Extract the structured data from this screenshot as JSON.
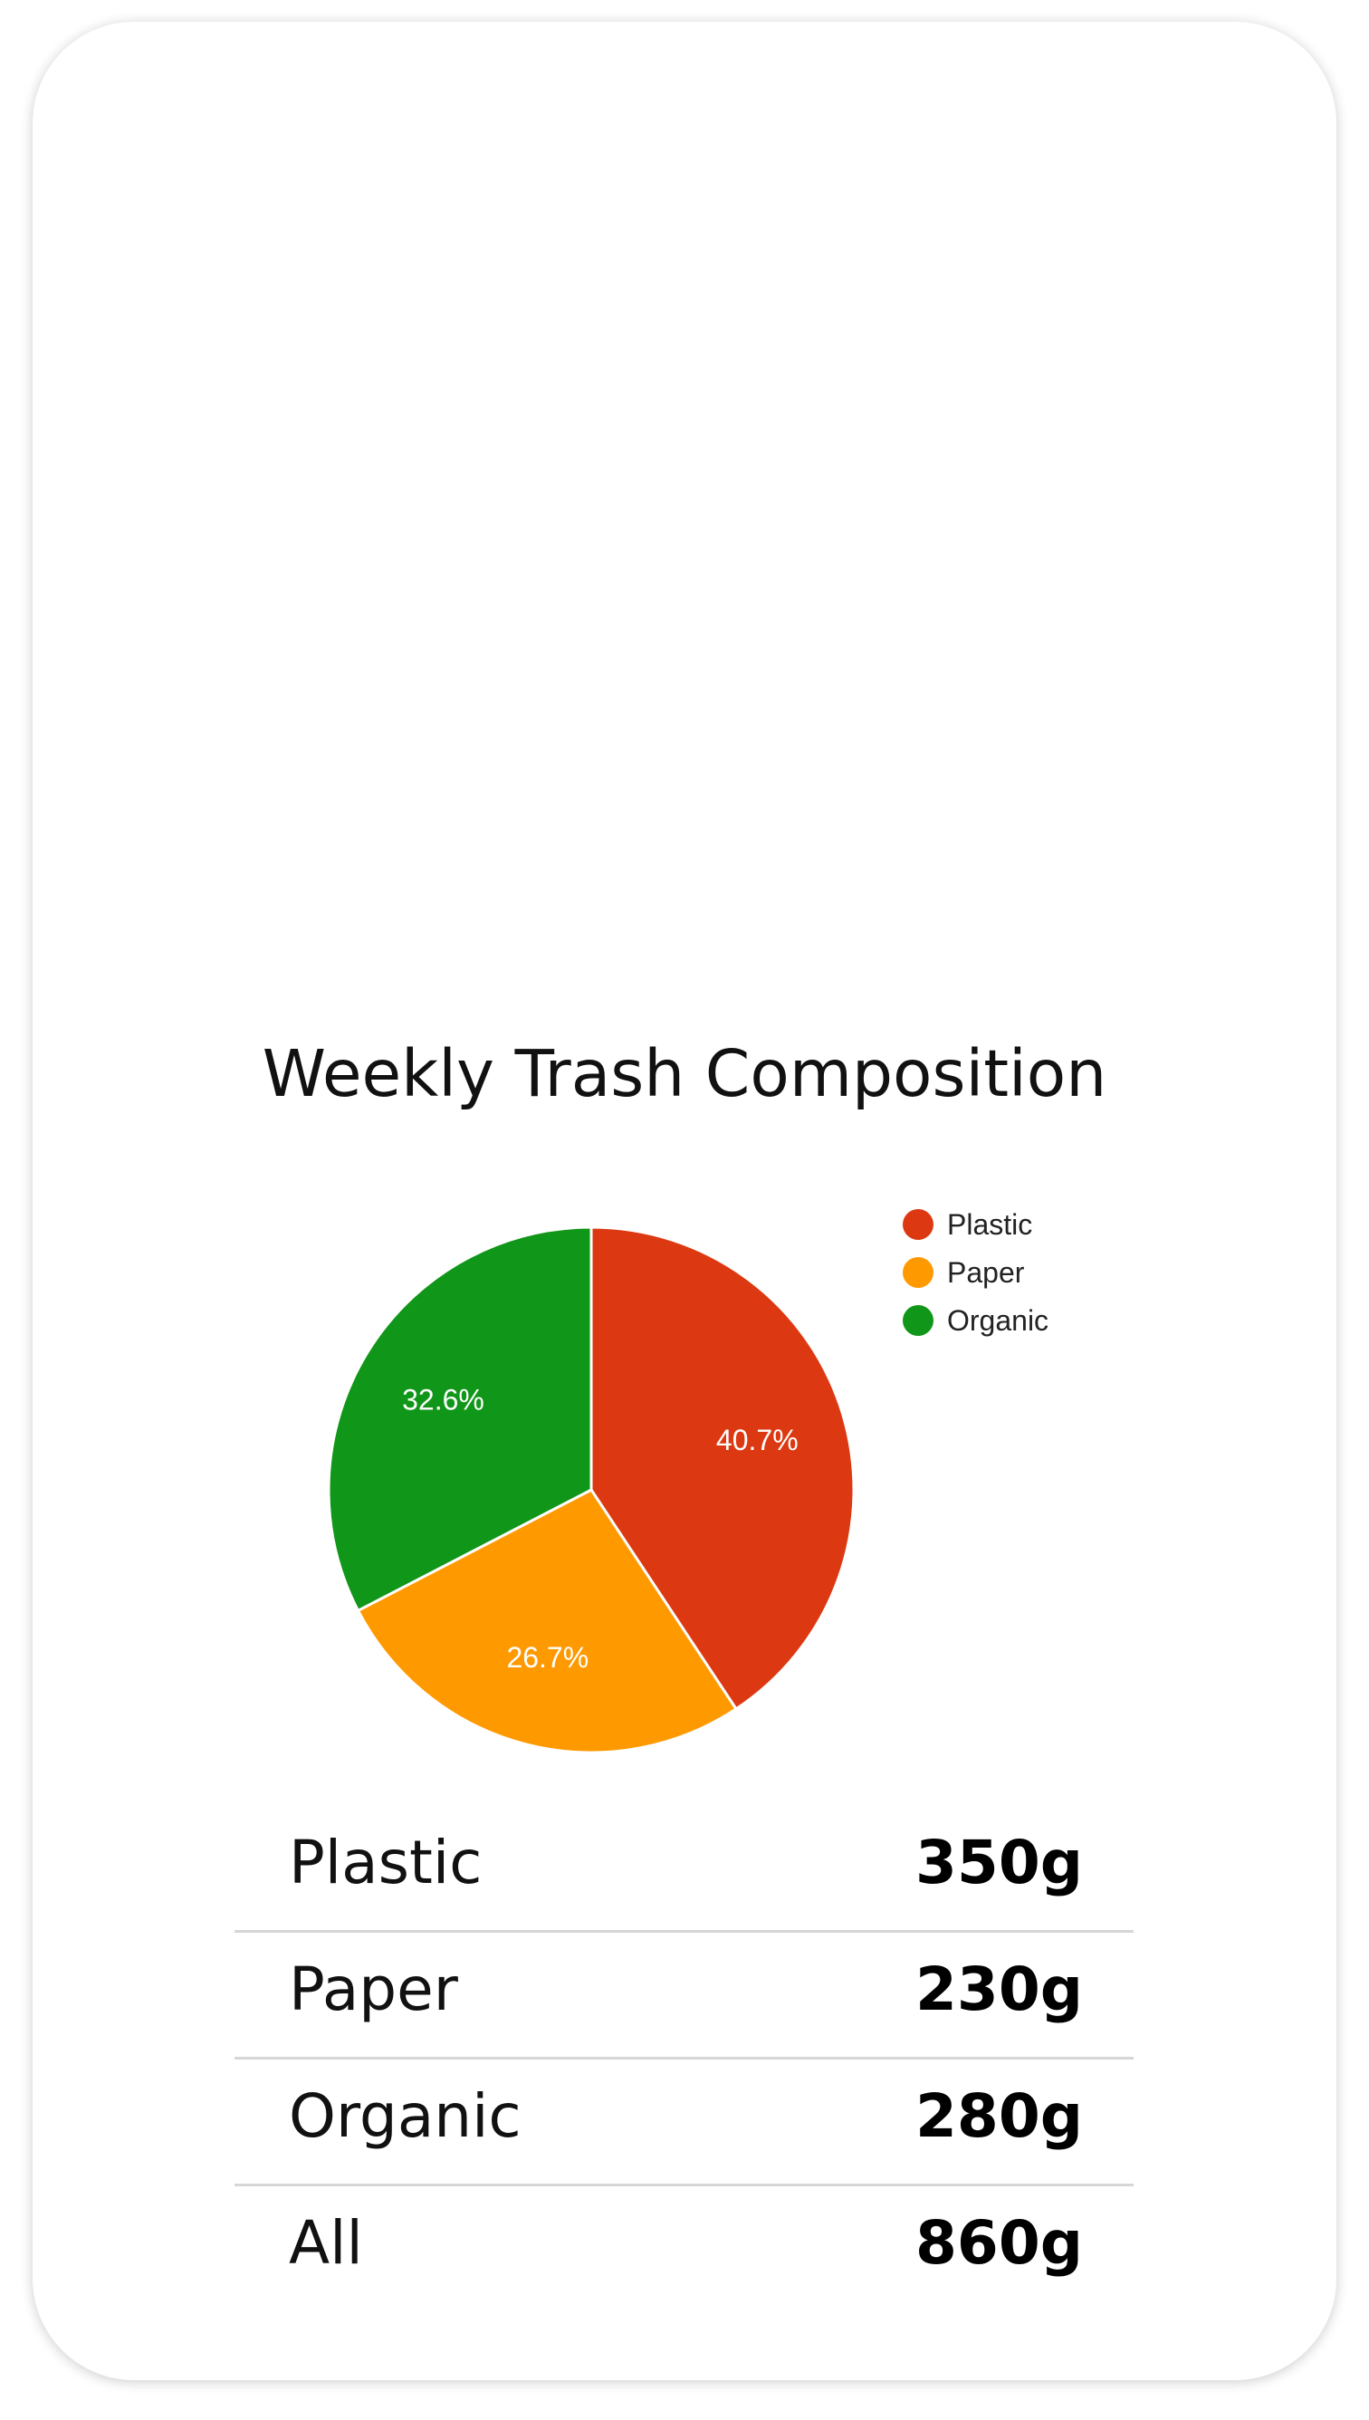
{
  "title": "Weekly Trash Composition",
  "chart_data": {
    "type": "pie",
    "title": "Weekly Trash Composition",
    "categories": [
      "Plastic",
      "Paper",
      "Organic"
    ],
    "values": [
      40.7,
      26.7,
      32.6
    ],
    "labels": [
      "40.7%",
      "26.7%",
      "32.6%"
    ],
    "colors": [
      "#dc3912",
      "#ff9900",
      "#109618"
    ],
    "legend_position": "top-right"
  },
  "summary": {
    "rows": [
      {
        "label": "Plastic",
        "value": "350g"
      },
      {
        "label": "Paper",
        "value": "230g"
      },
      {
        "label": "Organic",
        "value": "280g"
      },
      {
        "label": "All",
        "value": "860g"
      }
    ]
  }
}
